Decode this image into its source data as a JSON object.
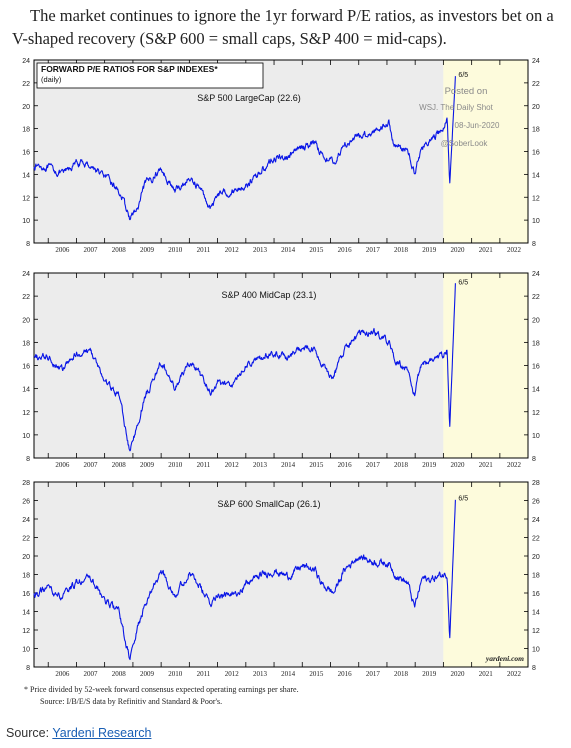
{
  "intro_text": "The market continues to ignore the 1yr forward P/E ratios, as investors bet on a V-shaped recovery (S&P 600 = small caps, S&P 400 = mid-caps).",
  "footnote_1": "*  Price divided by 52-week forward consensus expected operating earnings per share.",
  "footnote_2": "Source: I/B/E/S data by Refinitiv and Standard & Poor's.",
  "credit": "yardeni.com",
  "source": {
    "label": "Source: ",
    "link_text": "Yardeni Research"
  },
  "colors": {
    "line": "#0a16e6",
    "forecast_band": "#fdfbdc",
    "plot_bg": "#ececec",
    "panel_bg": "#fdfce6",
    "accent": "#1a5fb4"
  },
  "chart_data": [
    {
      "type": "line",
      "title": "FORWARD P/E RATIOS FOR S&P INDEXES*",
      "subtitle": "(daily)",
      "series": [
        {
          "name": "S&P 500 LargeCap (22.6)",
          "x": [
            "2005-07-01",
            "2006-01-01",
            "2006-07-01",
            "2007-01-01",
            "2007-07-01",
            "2008-01-01",
            "2008-07-01",
            "2008-11-20",
            "2009-03-09",
            "2009-06-01",
            "2010-01-01",
            "2010-07-01",
            "2011-01-01",
            "2011-05-01",
            "2011-10-03",
            "2012-01-01",
            "2012-07-01",
            "2013-01-01",
            "2013-07-01",
            "2014-01-01",
            "2014-07-01",
            "2015-01-01",
            "2015-07-01",
            "2015-09-01",
            "2016-02-11",
            "2016-07-01",
            "2017-01-01",
            "2017-07-01",
            "2018-01-26",
            "2018-04-01",
            "2018-10-01",
            "2018-12-24",
            "2019-04-01",
            "2019-07-01",
            "2020-01-01",
            "2020-02-19",
            "2020-03-23",
            "2020-06-05"
          ],
          "y": [
            14.8,
            14.6,
            14.0,
            15.0,
            14.8,
            13.8,
            12.6,
            10.2,
            11.0,
            13.0,
            14.5,
            12.5,
            13.6,
            13.0,
            11.0,
            12.4,
            12.5,
            13.0,
            14.2,
            15.4,
            15.5,
            16.4,
            16.8,
            15.8,
            15.0,
            16.6,
            17.3,
            17.7,
            18.6,
            16.6,
            16.0,
            14.2,
            16.4,
            16.8,
            18.0,
            19.0,
            13.1,
            22.6
          ]
        }
      ],
      "ylim": [
        8,
        24
      ],
      "yticks": [
        8,
        10,
        12,
        14,
        16,
        18,
        20,
        22,
        24
      ],
      "xlim": [
        "2005-07-01",
        "2022-12-31"
      ],
      "categories": [
        "2006",
        "2007",
        "2008",
        "2009",
        "2010",
        "2011",
        "2012",
        "2013",
        "2014",
        "2015",
        "2016",
        "2017",
        "2018",
        "2019",
        "2020",
        "2021",
        "2022"
      ],
      "annotation": "6/5",
      "watermark": [
        "Posted on",
        "WSJ. The Daily Shot",
        "08-Jun-2020",
        "@SoberLook"
      ]
    },
    {
      "type": "line",
      "series": [
        {
          "name": "S&P 400 MidCap (23.1)",
          "x": [
            "2005-07-01",
            "2006-01-01",
            "2006-07-01",
            "2007-01-01",
            "2007-07-01",
            "2008-01-01",
            "2008-07-01",
            "2008-11-20",
            "2009-03-09",
            "2009-06-01",
            "2010-01-01",
            "2010-07-01",
            "2011-01-01",
            "2011-05-01",
            "2011-10-03",
            "2012-01-01",
            "2012-07-01",
            "2013-01-01",
            "2013-07-01",
            "2014-01-01",
            "2014-07-01",
            "2015-01-01",
            "2015-07-01",
            "2015-09-01",
            "2016-02-11",
            "2016-07-01",
            "2017-01-01",
            "2017-07-01",
            "2018-01-26",
            "2018-04-01",
            "2018-10-01",
            "2018-12-24",
            "2019-04-01",
            "2019-07-01",
            "2020-01-01",
            "2020-02-19",
            "2020-03-23",
            "2020-06-05"
          ],
          "y": [
            16.6,
            16.8,
            15.6,
            17.0,
            17.3,
            14.6,
            13.5,
            8.6,
            11.0,
            13.2,
            16.3,
            14.0,
            16.3,
            15.5,
            13.5,
            14.6,
            14.2,
            16.0,
            16.6,
            17.0,
            16.8,
            17.5,
            17.2,
            16.0,
            15.0,
            17.5,
            18.6,
            19.0,
            18.0,
            16.5,
            15.5,
            13.4,
            16.4,
            16.3,
            17.0,
            17.4,
            10.5,
            23.1
          ]
        }
      ],
      "ylim": [
        8,
        24
      ],
      "yticks": [
        8,
        10,
        12,
        14,
        16,
        18,
        20,
        22,
        24
      ],
      "xlim": [
        "2005-07-01",
        "2022-12-31"
      ],
      "categories": [
        "2006",
        "2007",
        "2008",
        "2009",
        "2010",
        "2011",
        "2012",
        "2013",
        "2014",
        "2015",
        "2016",
        "2017",
        "2018",
        "2019",
        "2020",
        "2021",
        "2022"
      ],
      "annotation": "6/5"
    },
    {
      "type": "line",
      "series": [
        {
          "name": "S&P 600 SmallCap (26.1)",
          "x": [
            "2005-07-01",
            "2006-01-01",
            "2006-07-01",
            "2007-01-01",
            "2007-07-01",
            "2008-01-01",
            "2008-07-01",
            "2008-11-20",
            "2009-03-09",
            "2009-06-01",
            "2010-01-01",
            "2010-07-01",
            "2011-01-01",
            "2011-05-01",
            "2011-10-03",
            "2012-01-01",
            "2012-07-01",
            "2013-01-01",
            "2013-07-01",
            "2014-01-01",
            "2014-07-01",
            "2015-01-01",
            "2015-07-01",
            "2015-09-01",
            "2016-02-11",
            "2016-07-01",
            "2017-01-01",
            "2017-07-01",
            "2018-01-26",
            "2018-04-01",
            "2018-10-01",
            "2018-12-24",
            "2019-04-01",
            "2019-07-01",
            "2020-01-01",
            "2020-02-19",
            "2020-03-23",
            "2020-06-05"
          ],
          "y": [
            15.8,
            16.5,
            15.4,
            17.2,
            17.6,
            15.2,
            14.0,
            8.8,
            12.4,
            14.6,
            18.4,
            15.8,
            18.2,
            16.8,
            14.8,
            16.0,
            15.6,
            17.0,
            17.9,
            18.4,
            17.8,
            18.9,
            18.4,
            17.0,
            16.0,
            18.5,
            20.0,
            19.4,
            19.2,
            18.2,
            17.0,
            14.4,
            17.6,
            17.4,
            18.0,
            18.0,
            11.0,
            26.1
          ]
        }
      ],
      "ylim": [
        8,
        28
      ],
      "yticks": [
        8,
        10,
        12,
        14,
        16,
        18,
        20,
        22,
        24,
        26,
        28
      ],
      "xlim": [
        "2005-07-01",
        "2022-12-31"
      ],
      "categories": [
        "2006",
        "2007",
        "2008",
        "2009",
        "2010",
        "2011",
        "2012",
        "2013",
        "2014",
        "2015",
        "2016",
        "2017",
        "2018",
        "2019",
        "2020",
        "2021",
        "2022"
      ],
      "annotation": "6/5"
    }
  ]
}
